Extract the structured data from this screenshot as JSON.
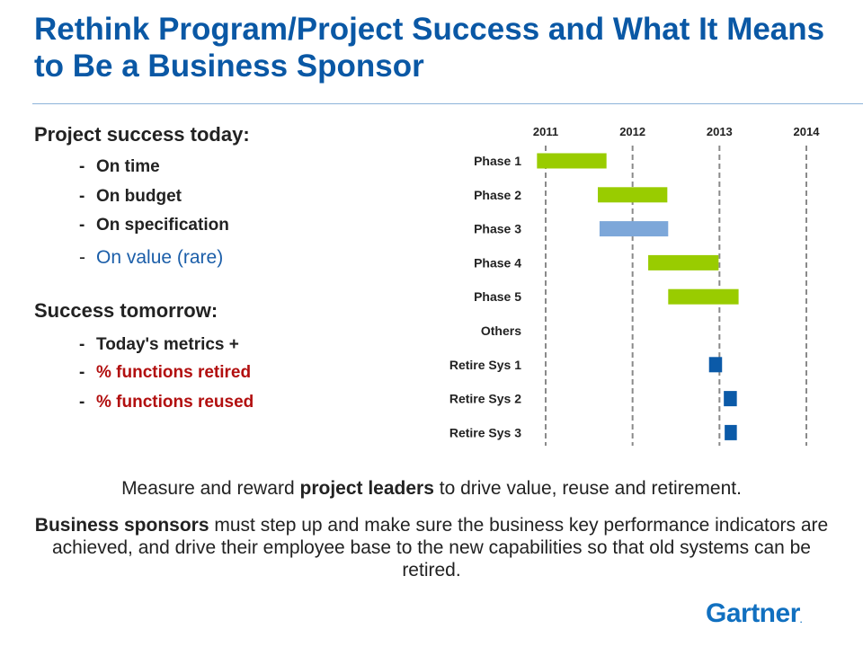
{
  "title": "Rethink Program/Project Success and What It Means to Be a Business Sponsor",
  "today": {
    "heading": "Project success today:",
    "items": [
      "On time",
      "On budget",
      "On specification",
      "On value (rare)"
    ]
  },
  "tomorrow": {
    "heading": "Success tomorrow:",
    "items": [
      "Today's metrics +",
      "% functions retired",
      "% functions reused"
    ]
  },
  "bullet_dash": "-",
  "chart_data": {
    "type": "gantt",
    "x_ticks": [
      "2011",
      "2012",
      "2013",
      "2014"
    ],
    "xlim": [
      2011,
      2014
    ],
    "rows": [
      {
        "label": "Phase 1",
        "start": 2010.9,
        "end": 2011.7,
        "color": "#99cc00"
      },
      {
        "label": "Phase 2",
        "start": 2011.6,
        "end": 2012.4,
        "color": "#99cc00"
      },
      {
        "label": "Phase 3",
        "start": 2011.62,
        "end": 2012.41,
        "color": "#7da7d9"
      },
      {
        "label": "Phase 4",
        "start": 2012.18,
        "end": 2012.99,
        "color": "#99cc00"
      },
      {
        "label": "Phase 5",
        "start": 2012.41,
        "end": 2013.22,
        "color": "#99cc00"
      },
      {
        "label": "Others",
        "start": null,
        "end": null,
        "color": null
      },
      {
        "label": "Retire Sys 1",
        "start": 2012.88,
        "end": 2013.03,
        "color": "#0b5aa8"
      },
      {
        "label": "Retire Sys 2",
        "start": 2013.05,
        "end": 2013.2,
        "color": "#0b5aa8"
      },
      {
        "label": "Retire Sys 3",
        "start": 2013.06,
        "end": 2013.2,
        "color": "#0b5aa8"
      }
    ],
    "grid": "dashed vertical at year ticks"
  },
  "caption1": {
    "pre": "Measure and reward ",
    "bold": "project leaders",
    "post": " to drive value, reuse and retirement."
  },
  "caption2": {
    "bold": "Business sponsors",
    "post": " must step up and make sure the business key performance indicators are achieved, and drive their employee base to the new capabilities so that old systems can be retired."
  },
  "logo": {
    "text": "Gartner",
    "mark": "."
  },
  "colors": {
    "title": "#0a58a5",
    "blue_item": "#1b5ea9",
    "red_item": "#b20f0f"
  }
}
